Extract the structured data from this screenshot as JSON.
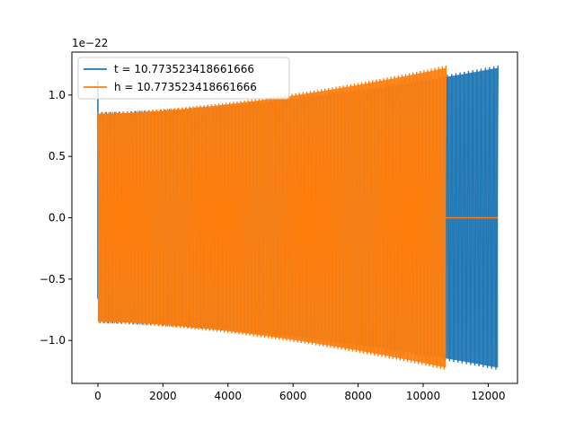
{
  "chart_data": {
    "type": "line",
    "title": "",
    "xlabel": "",
    "ylabel": "",
    "y_offset_label": "1e−22",
    "xlim": [
      -800,
      12900
    ],
    "ylim": [
      -1.35,
      1.35
    ],
    "xticks": [
      0,
      2000,
      4000,
      6000,
      8000,
      10000,
      12000
    ],
    "xtick_labels": [
      "0",
      "2000",
      "4000",
      "6000",
      "8000",
      "10000",
      "12000"
    ],
    "yticks": [
      -1.0,
      -0.5,
      0.0,
      0.5,
      1.0
    ],
    "ytick_labels": [
      "−1.0",
      "−0.5",
      "0.0",
      "0.5",
      "1.0"
    ],
    "grid": false,
    "legend_position": "upper-left",
    "series": [
      {
        "name": "t = 10.773523418661666",
        "color": "#1f77b4",
        "shape": "oscillation",
        "x_start": 0,
        "x_end": 12300,
        "amp_start": 0.86,
        "amp_end": 1.24,
        "initial_spike": 1.12,
        "zero_tail_start": null
      },
      {
        "name": "h = 10.773523418661666",
        "color": "#ff7f0e",
        "shape": "oscillation",
        "x_start": 0,
        "x_end": 10700,
        "amp_start": 0.86,
        "amp_end": 1.24,
        "initial_spike": null,
        "zero_tail_start": 10700,
        "zero_tail_end": 12300
      }
    ]
  }
}
